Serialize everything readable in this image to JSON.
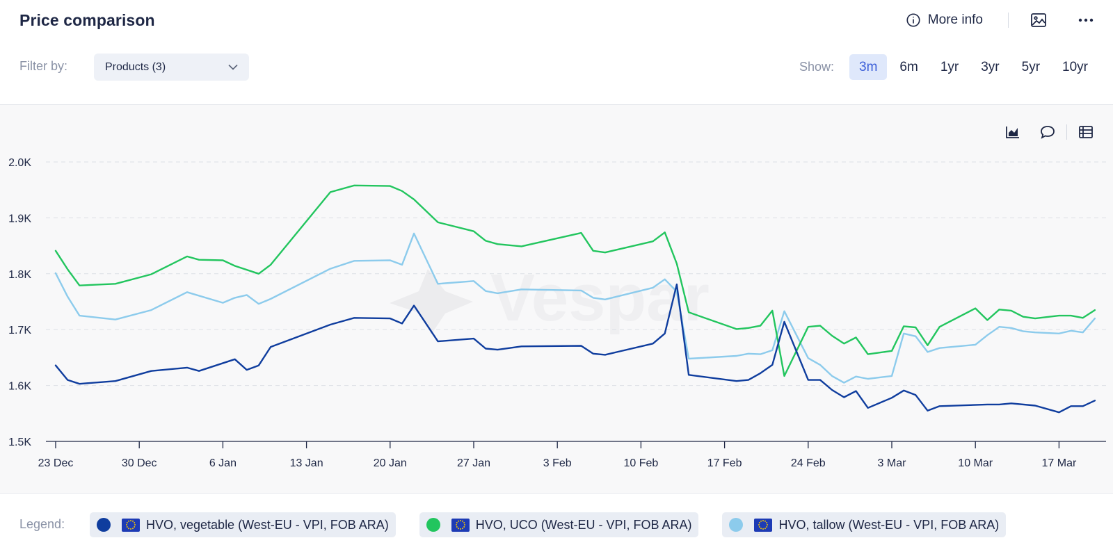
{
  "header": {
    "title": "Price comparison",
    "more_info_label": "More info"
  },
  "filter": {
    "label": "Filter by:",
    "selected": "Products (3)"
  },
  "range": {
    "label": "Show:",
    "options": [
      "3m",
      "6m",
      "1yr",
      "3yr",
      "5yr",
      "10yr"
    ],
    "active": "3m"
  },
  "legend": {
    "label": "Legend:",
    "items": [
      {
        "label": "HVO, vegetable (West-EU - VPI, FOB ARA)",
        "color": "#0f3d9e"
      },
      {
        "label": "HVO, UCO (West-EU - VPI, FOB ARA)",
        "color": "#22c55e"
      },
      {
        "label": "HVO, tallow (West-EU - VPI, FOB ARA)",
        "color": "#8ccbec"
      }
    ]
  },
  "watermark": "Vespar",
  "chart_data": {
    "type": "line",
    "title": "",
    "xlabel": "",
    "ylabel": "",
    "x_ticks": [
      "23 Dec",
      "30 Dec",
      "6 Jan",
      "13 Jan",
      "20 Jan",
      "27 Jan",
      "3 Feb",
      "10 Feb",
      "17 Feb",
      "24 Feb",
      "3 Mar",
      "10 Mar",
      "17 Mar"
    ],
    "y_ticks": [
      "1.5K",
      "1.6K",
      "1.7K",
      "1.8K",
      "1.9K",
      "2.0K"
    ],
    "ylim": [
      1500,
      2000
    ],
    "xlim": [
      0,
      87.5
    ],
    "x_unit": "days since 23 Dec",
    "grid": true,
    "series": [
      {
        "name": "HVO, vegetable (West-EU - VPI, FOB ARA)",
        "color": "#0f3d9e",
        "points": [
          [
            0,
            1636
          ],
          [
            1,
            1610
          ],
          [
            2,
            1603
          ],
          [
            5,
            1608
          ],
          [
            8,
            1626
          ],
          [
            11,
            1632
          ],
          [
            12,
            1626
          ],
          [
            15,
            1647
          ],
          [
            16,
            1628
          ],
          [
            17,
            1636
          ],
          [
            18,
            1669
          ],
          [
            23,
            1709
          ],
          [
            25,
            1721
          ],
          [
            28,
            1720
          ],
          [
            29,
            1711
          ],
          [
            30,
            1743
          ],
          [
            32,
            1679
          ],
          [
            35,
            1684
          ],
          [
            36,
            1666
          ],
          [
            37,
            1664
          ],
          [
            39,
            1670
          ],
          [
            44,
            1671
          ],
          [
            45,
            1657
          ],
          [
            46,
            1655
          ],
          [
            50,
            1675
          ],
          [
            51,
            1693
          ],
          [
            52,
            1781
          ],
          [
            53,
            1619
          ],
          [
            57,
            1608
          ],
          [
            58,
            1610
          ],
          [
            59,
            1622
          ],
          [
            60,
            1637
          ],
          [
            61,
            1714
          ],
          [
            63,
            1610
          ],
          [
            64,
            1610
          ],
          [
            65,
            1592
          ],
          [
            66,
            1579
          ],
          [
            67,
            1590
          ],
          [
            68,
            1560
          ],
          [
            70,
            1578
          ],
          [
            71,
            1591
          ],
          [
            72,
            1583
          ],
          [
            73,
            1555
          ],
          [
            74,
            1563
          ],
          [
            78,
            1566
          ],
          [
            79,
            1566
          ],
          [
            80,
            1568
          ],
          [
            82,
            1564
          ],
          [
            84,
            1552
          ],
          [
            85,
            1563
          ],
          [
            86,
            1563
          ],
          [
            87,
            1573
          ]
        ]
      },
      {
        "name": "HVO, UCO (West-EU - VPI, FOB ARA)",
        "color": "#22c55e",
        "points": [
          [
            0,
            1841
          ],
          [
            1,
            1808
          ],
          [
            2,
            1779
          ],
          [
            5,
            1782
          ],
          [
            8,
            1799
          ],
          [
            11,
            1831
          ],
          [
            12,
            1825
          ],
          [
            14,
            1824
          ],
          [
            15,
            1814
          ],
          [
            17,
            1800
          ],
          [
            18,
            1816
          ],
          [
            23,
            1946
          ],
          [
            25,
            1958
          ],
          [
            28,
            1957
          ],
          [
            29,
            1948
          ],
          [
            30,
            1933
          ],
          [
            32,
            1892
          ],
          [
            35,
            1876
          ],
          [
            36,
            1859
          ],
          [
            37,
            1853
          ],
          [
            39,
            1849
          ],
          [
            44,
            1873
          ],
          [
            45,
            1841
          ],
          [
            46,
            1838
          ],
          [
            50,
            1858
          ],
          [
            51,
            1874
          ],
          [
            52,
            1818
          ],
          [
            53,
            1731
          ],
          [
            57,
            1701
          ],
          [
            58,
            1703
          ],
          [
            59,
            1707
          ],
          [
            60,
            1734
          ],
          [
            61,
            1617
          ],
          [
            63,
            1705
          ],
          [
            64,
            1707
          ],
          [
            65,
            1689
          ],
          [
            66,
            1675
          ],
          [
            67,
            1686
          ],
          [
            68,
            1656
          ],
          [
            70,
            1662
          ],
          [
            71,
            1706
          ],
          [
            72,
            1704
          ],
          [
            73,
            1672
          ],
          [
            74,
            1705
          ],
          [
            77,
            1738
          ],
          [
            78,
            1717
          ],
          [
            79,
            1736
          ],
          [
            80,
            1734
          ],
          [
            81,
            1723
          ],
          [
            82,
            1720
          ],
          [
            84,
            1725
          ],
          [
            85,
            1725
          ],
          [
            86,
            1721
          ],
          [
            87,
            1735
          ]
        ]
      },
      {
        "name": "HVO, tallow (West-EU - VPI, FOB ARA)",
        "color": "#8ccbec",
        "points": [
          [
            0,
            1801
          ],
          [
            1,
            1759
          ],
          [
            2,
            1725
          ],
          [
            5,
            1718
          ],
          [
            8,
            1735
          ],
          [
            11,
            1767
          ],
          [
            14,
            1748
          ],
          [
            15,
            1757
          ],
          [
            16,
            1762
          ],
          [
            17,
            1746
          ],
          [
            18,
            1755
          ],
          [
            23,
            1809
          ],
          [
            25,
            1823
          ],
          [
            28,
            1824
          ],
          [
            29,
            1816
          ],
          [
            30,
            1872
          ],
          [
            32,
            1782
          ],
          [
            35,
            1787
          ],
          [
            36,
            1769
          ],
          [
            37,
            1765
          ],
          [
            39,
            1772
          ],
          [
            44,
            1770
          ],
          [
            45,
            1757
          ],
          [
            46,
            1754
          ],
          [
            50,
            1775
          ],
          [
            51,
            1790
          ],
          [
            52,
            1768
          ],
          [
            53,
            1648
          ],
          [
            57,
            1653
          ],
          [
            58,
            1657
          ],
          [
            59,
            1656
          ],
          [
            60,
            1663
          ],
          [
            61,
            1733
          ],
          [
            63,
            1649
          ],
          [
            64,
            1637
          ],
          [
            65,
            1617
          ],
          [
            66,
            1605
          ],
          [
            67,
            1616
          ],
          [
            68,
            1612
          ],
          [
            70,
            1617
          ],
          [
            71,
            1693
          ],
          [
            72,
            1688
          ],
          [
            73,
            1660
          ],
          [
            74,
            1667
          ],
          [
            77,
            1673
          ],
          [
            78,
            1690
          ],
          [
            79,
            1705
          ],
          [
            80,
            1703
          ],
          [
            81,
            1697
          ],
          [
            82,
            1695
          ],
          [
            84,
            1693
          ],
          [
            85,
            1698
          ],
          [
            86,
            1695
          ],
          [
            87,
            1720
          ]
        ]
      }
    ]
  }
}
